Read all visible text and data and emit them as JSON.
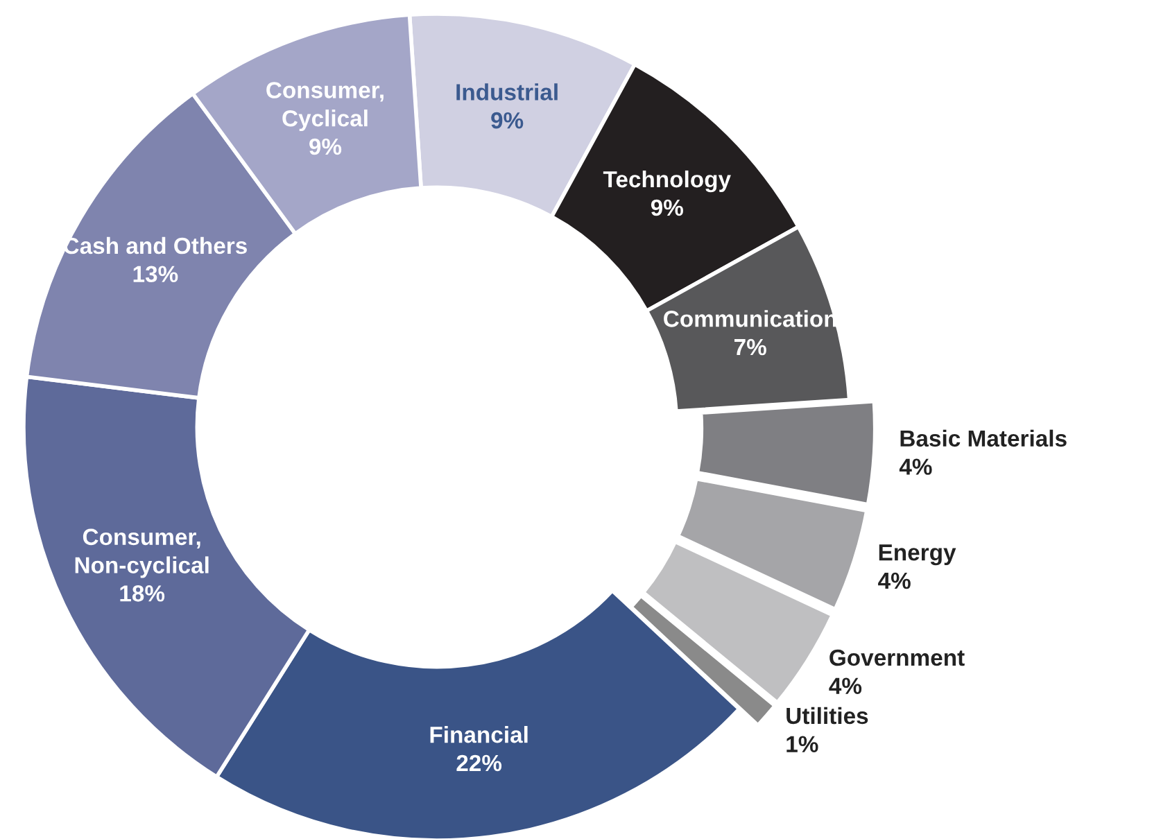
{
  "chart_data": {
    "type": "donut",
    "categories": [
      "Industrial",
      "Technology",
      "Communication",
      "Basic Materials",
      "Energy",
      "Government",
      "Utilities",
      "Financial",
      "Consumer,\nNon-cyclical",
      "Cash and Others",
      "Consumer,\nCyclical"
    ],
    "values": [
      9,
      9,
      7,
      4,
      4,
      4,
      1,
      22,
      18,
      13,
      9
    ],
    "value_labels": [
      "9%",
      "9%",
      "7%",
      "4%",
      "4%",
      "4%",
      "1%",
      "22%",
      "18%",
      "13%",
      "9%"
    ],
    "colors": [
      "#d0d0e2",
      "#231f20",
      "#58585a",
      "#7f7f83",
      "#a5a5a8",
      "#bfbfc1",
      "#8a8a8a",
      "#3a5487",
      "#5e6a9a",
      "#7f84ae",
      "#a4a6c8"
    ],
    "legend": false
  }
}
